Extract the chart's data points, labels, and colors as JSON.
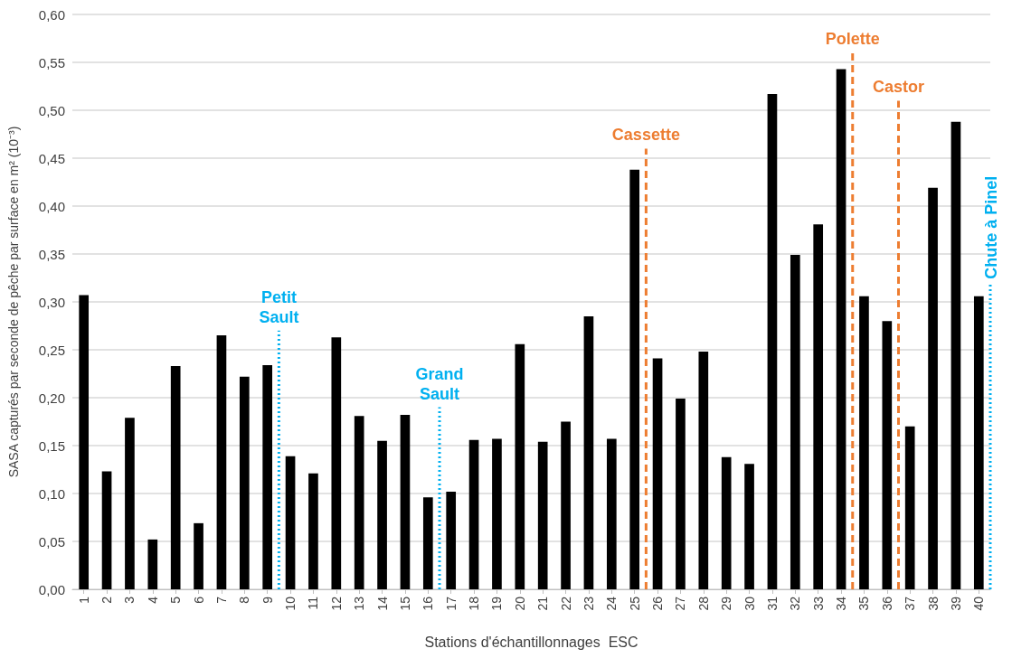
{
  "chart_data": {
    "type": "bar",
    "xlabel": "Stations d'échantillonnages  ESC",
    "ylabel": "SASA capturés par seconde de pêche par surface en m² (10⁻³)",
    "x": [
      1,
      2,
      3,
      4,
      5,
      6,
      7,
      8,
      9,
      10,
      11,
      12,
      13,
      14,
      15,
      16,
      17,
      18,
      19,
      20,
      21,
      22,
      23,
      24,
      25,
      26,
      27,
      28,
      29,
      30,
      31,
      32,
      33,
      34,
      35,
      36,
      37,
      38,
      39,
      40
    ],
    "values": [
      0.307,
      0.123,
      0.179,
      0.052,
      0.233,
      0.069,
      0.265,
      0.222,
      0.234,
      0.139,
      0.121,
      0.263,
      0.181,
      0.155,
      0.182,
      0.096,
      0.102,
      0.156,
      0.157,
      0.256,
      0.154,
      0.175,
      0.285,
      0.157,
      0.438,
      0.241,
      0.199,
      0.248,
      0.138,
      0.131,
      0.517,
      0.349,
      0.381,
      0.543,
      0.306,
      0.28,
      0.17,
      0.419,
      0.488,
      0.306
    ],
    "color": "#000000",
    "xlim": [
      0.5,
      40.5
    ],
    "xticks": [
      1,
      2,
      3,
      4,
      5,
      6,
      7,
      8,
      9,
      10,
      11,
      12,
      13,
      14,
      15,
      16,
      17,
      18,
      19,
      20,
      21,
      22,
      23,
      24,
      25,
      26,
      27,
      28,
      29,
      30,
      31,
      32,
      33,
      34,
      35,
      36,
      37,
      38,
      39,
      40
    ],
    "ylim": [
      0,
      0.6
    ],
    "yticks": [
      {
        "value": 0,
        "label": "0,00"
      },
      {
        "value": 0.05,
        "label": "0,05"
      },
      {
        "value": 0.1,
        "label": "0,10"
      },
      {
        "value": 0.15,
        "label": "0,15"
      },
      {
        "value": 0.2,
        "label": "0,20"
      },
      {
        "value": 0.25,
        "label": "0,25"
      },
      {
        "value": 0.3,
        "label": "0,30"
      },
      {
        "value": 0.35,
        "label": "0,35"
      },
      {
        "value": 0.4,
        "label": "0,40"
      },
      {
        "value": 0.45,
        "label": "0,45"
      },
      {
        "value": 0.5,
        "label": "0,50"
      },
      {
        "value": 0.55,
        "label": "0,55"
      },
      {
        "value": 0.6,
        "label": "0,60"
      }
    ],
    "grid": "y",
    "ref_lines": [
      {
        "axis": "x",
        "value": 9.5,
        "color": "#00b0f0",
        "line_style": "dotted"
      },
      {
        "axis": "x",
        "value": 16.5,
        "color": "#00b0f0",
        "line_style": "dotted"
      },
      {
        "axis": "x",
        "value": 25.5,
        "color": "#ed7d31",
        "line_style": "dashed"
      },
      {
        "axis": "x",
        "value": 34.5,
        "color": "#ed7d31",
        "line_style": "dashed"
      },
      {
        "axis": "x",
        "value": 36.5,
        "color": "#ed7d31",
        "line_style": "dashed"
      },
      {
        "axis": "x",
        "value": 40.5,
        "color": "#00b0f0",
        "line_style": "dotted"
      }
    ],
    "annotations": [
      {
        "text": "Petit Sault",
        "x": 9.5,
        "y": 0.27
      },
      {
        "text": "Grand Sault",
        "x": 16.5,
        "y": 0.19
      },
      {
        "text": "Cassette",
        "x": 25.5,
        "y": 0.46
      },
      {
        "text": "Polette",
        "x": 34.5,
        "y": 0.56
      },
      {
        "text": "Castor",
        "x": 36.5,
        "y": 0.51
      },
      {
        "text": "Chute à Pinel",
        "x": 40.5,
        "y": 0.32
      }
    ]
  }
}
